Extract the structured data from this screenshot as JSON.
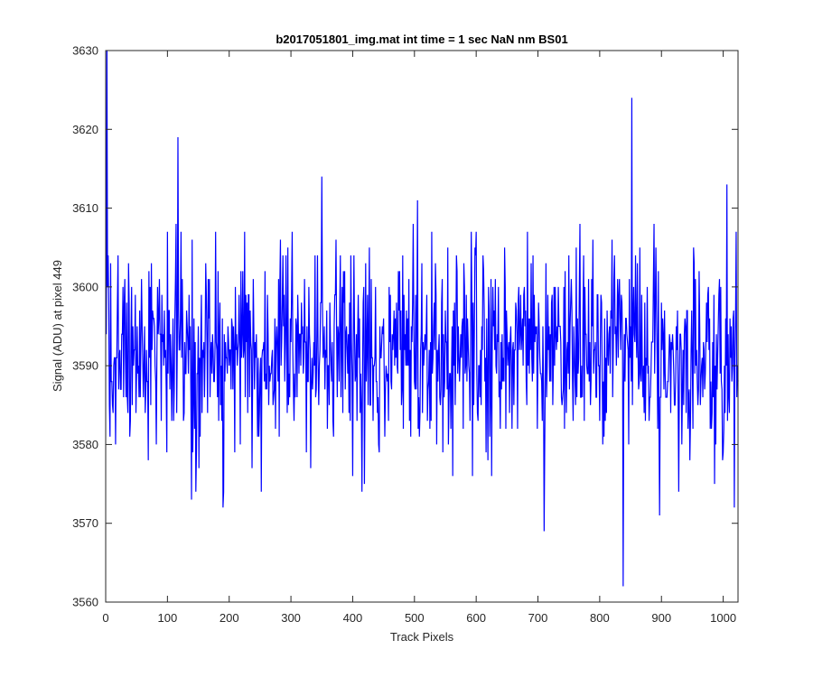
{
  "chart_data": {
    "type": "line",
    "title": "b2017051801_img.mat int time = 1 sec  NaN nm BS01",
    "xlabel": "Track Pixels",
    "ylabel": "Signal (ADU) at pixel 449",
    "xlim": [
      0,
      1024
    ],
    "ylim": [
      3560,
      3630
    ],
    "xticks": [
      0,
      100,
      200,
      300,
      400,
      500,
      600,
      700,
      800,
      900,
      1000
    ],
    "yticks": [
      3560,
      3570,
      3580,
      3590,
      3600,
      3610,
      3620,
      3630
    ],
    "grid": false,
    "line_color": "#0000ff",
    "series": [
      {
        "name": "",
        "x_start": 1,
        "x_step": 1,
        "mean": 3591.5,
        "stdev": 6.5,
        "notable_points": [
          {
            "x": 2,
            "y": 3630
          },
          {
            "x": 5,
            "y": 3597
          },
          {
            "x": 10,
            "y": 3588
          },
          {
            "x": 16,
            "y": 3580
          },
          {
            "x": 20,
            "y": 3604
          },
          {
            "x": 117,
            "y": 3619
          },
          {
            "x": 139,
            "y": 3573
          },
          {
            "x": 190,
            "y": 3572
          },
          {
            "x": 350,
            "y": 3614
          },
          {
            "x": 505,
            "y": 3611
          },
          {
            "x": 710,
            "y": 3569
          },
          {
            "x": 838,
            "y": 3562
          },
          {
            "x": 852,
            "y": 3624
          },
          {
            "x": 897,
            "y": 3571
          },
          {
            "x": 1006,
            "y": 3613
          },
          {
            "x": 1018,
            "y": 3572
          }
        ]
      }
    ]
  }
}
